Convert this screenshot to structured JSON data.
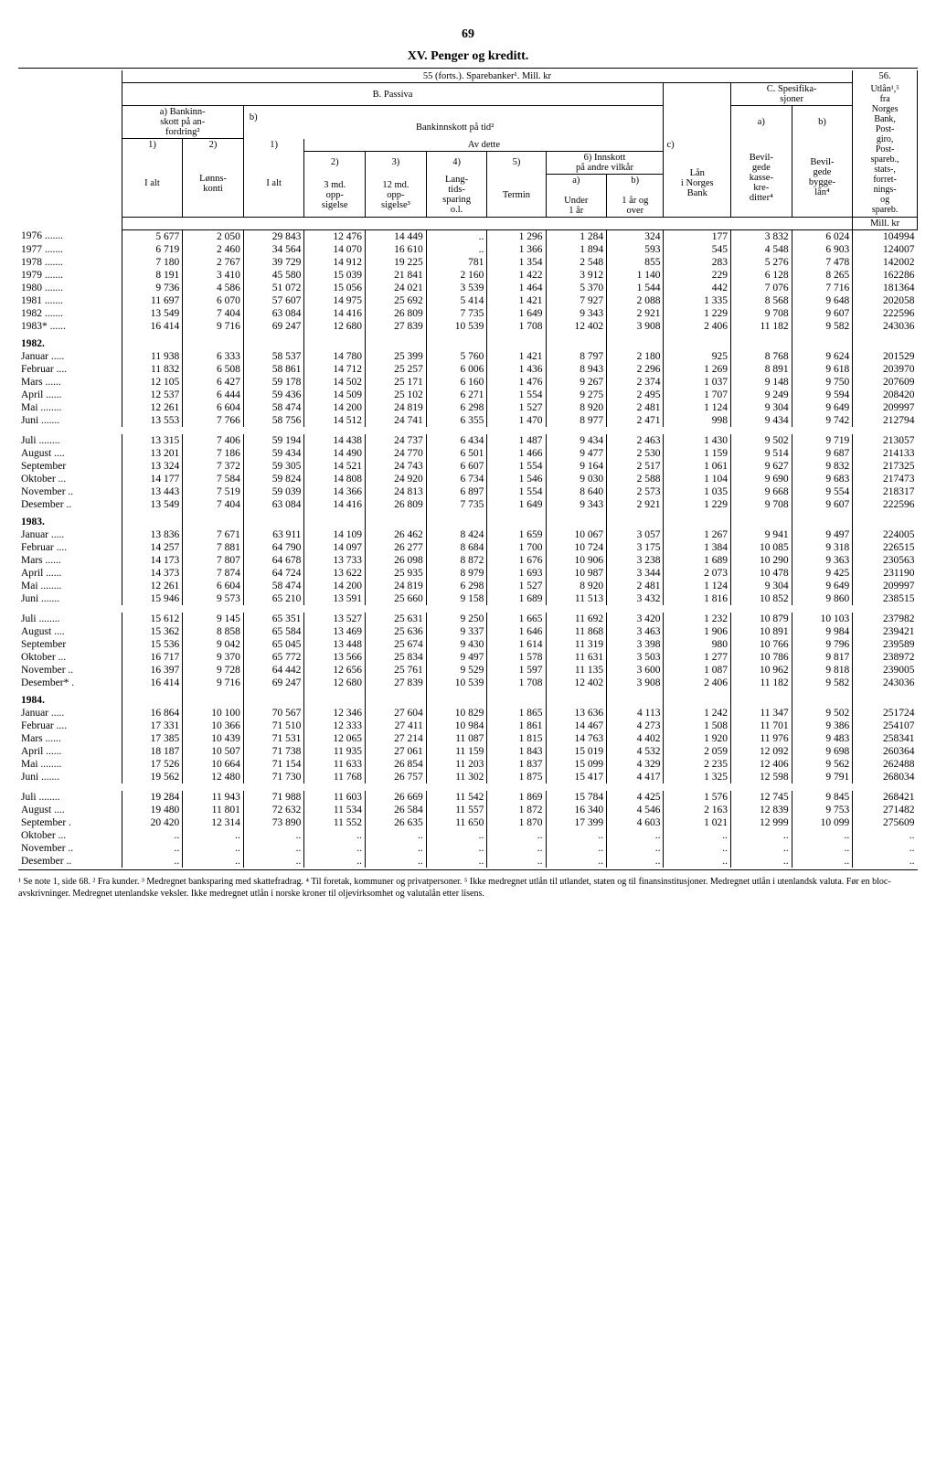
{
  "page_number": "69",
  "chapter_title": "XV. Penger og kreditt.",
  "table_title_left": "55 (forts.). Sparebanker¹. Mill. kr",
  "table_title_right": "56.",
  "header": {
    "b_passiva": "B. Passiva",
    "c_spes": "C. Spesifika-\nsjoner",
    "utlan": "Utlån¹,⁵\nfra\nNorges\nBank,\nPost-\ngiro,\nPost-\nspareb.,\nstats-,\nforret-\nnings-\nog\nspareb.",
    "a_bankinn": "a) Bankinn-\nskott på an-\nfordring²",
    "b_label": "b)",
    "c_label": "c)",
    "a_label_small": "a)",
    "b_label_small": "b)",
    "bankinnskott_tid": "Bankinnskott på tid²",
    "av_dette": "Av dette",
    "innskott_vilkar": "6) Innskott\npå andre vilkår",
    "lan_norges": "Lån\ni Norges\nBank",
    "bevil_kasse": "Bevil-\ngede\nkasse-\nkre-\nditter⁴",
    "bevil_bygge": "Bevil-\ngede\nbygge-\nlån⁴",
    "n1": "1)",
    "n2": "2)",
    "n3": "3)",
    "n4": "4)",
    "n5": "5)",
    "ialt": "I alt",
    "lonns": "Lønns-\nkonti",
    "3md": "3 md.\nopp-\nsigelse",
    "12md": "12 md.\nopp-\nsigelse³",
    "langtids": "Lang-\ntids-\nsparing\no.l.",
    "termin": "Termin",
    "a_small": "a)",
    "b_small": "b)",
    "under1ar": "Under\n1 år",
    "1arog": "1 år og\nover",
    "millkr": "Mill. kr"
  },
  "rows": [
    {
      "label": "1976 .......",
      "v": [
        "5 677",
        "2 050",
        "29 843",
        "12 476",
        "14 449",
        "..",
        "1 296",
        "1 284",
        "324",
        "177",
        "3 832",
        "6 024",
        "104994"
      ]
    },
    {
      "label": "1977 .......",
      "v": [
        "6 719",
        "2 460",
        "34 564",
        "14 070",
        "16 610",
        "..",
        "1 366",
        "1 894",
        "593",
        "545",
        "4 548",
        "6 903",
        "124007"
      ]
    },
    {
      "label": "1978 .......",
      "v": [
        "7 180",
        "2 767",
        "39 729",
        "14 912",
        "19 225",
        "781",
        "1 354",
        "2 548",
        "855",
        "283",
        "5 276",
        "7 478",
        "142002"
      ]
    },
    {
      "label": "1979 .......",
      "v": [
        "8 191",
        "3 410",
        "45 580",
        "15 039",
        "21 841",
        "2 160",
        "1 422",
        "3 912",
        "1 140",
        "229",
        "6 128",
        "8 265",
        "162286"
      ]
    },
    {
      "label": "1980 .......",
      "v": [
        "9 736",
        "4 586",
        "51 072",
        "15 056",
        "24 021",
        "3 539",
        "1 464",
        "5 370",
        "1 544",
        "442",
        "7 076",
        "7 716",
        "181364"
      ]
    },
    {
      "label": "1981 .......",
      "v": [
        "11 697",
        "6 070",
        "57 607",
        "14 975",
        "25 692",
        "5 414",
        "1 421",
        "7 927",
        "2 088",
        "1 335",
        "8 568",
        "9 648",
        "202058"
      ]
    },
    {
      "label": "1982 .......",
      "v": [
        "13 549",
        "7 404",
        "63 084",
        "14 416",
        "26 809",
        "7 735",
        "1 649",
        "9 343",
        "2 921",
        "1 229",
        "9 708",
        "9 607",
        "222596"
      ]
    },
    {
      "label": "1983* ......",
      "v": [
        "16 414",
        "9 716",
        "69 247",
        "12 680",
        "27 839",
        "10 539",
        "1 708",
        "12 402",
        "3 908",
        "2 406",
        "11 182",
        "9 582",
        "243036"
      ]
    }
  ],
  "y1982_label": "1982.",
  "y1982_rows": [
    {
      "label": "Januar .....",
      "v": [
        "11 938",
        "6 333",
        "58 537",
        "14 780",
        "25 399",
        "5 760",
        "1 421",
        "8 797",
        "2 180",
        "925",
        "8 768",
        "9 624",
        "201529"
      ]
    },
    {
      "label": "Februar ....",
      "v": [
        "11 832",
        "6 508",
        "58 861",
        "14 712",
        "25 257",
        "6 006",
        "1 436",
        "8 943",
        "2 296",
        "1 269",
        "8 891",
        "9 618",
        "203970"
      ]
    },
    {
      "label": "Mars ......",
      "v": [
        "12 105",
        "6 427",
        "59 178",
        "14 502",
        "25 171",
        "6 160",
        "1 476",
        "9 267",
        "2 374",
        "1 037",
        "9 148",
        "9 750",
        "207609"
      ]
    },
    {
      "label": "April ......",
      "v": [
        "12 537",
        "6 444",
        "59 436",
        "14 509",
        "25 102",
        "6 271",
        "1 554",
        "9 275",
        "2 495",
        "1 707",
        "9 249",
        "9 594",
        "208420"
      ]
    },
    {
      "label": "Mai ........",
      "v": [
        "12 261",
        "6 604",
        "58 474",
        "14 200",
        "24 819",
        "6 298",
        "1 527",
        "8 920",
        "2 481",
        "1 124",
        "9 304",
        "9 649",
        "209997"
      ]
    },
    {
      "label": "Juni .......",
      "v": [
        "13 553",
        "7 766",
        "58 756",
        "14 512",
        "24 741",
        "6 355",
        "1 470",
        "8 977",
        "2 471",
        "998",
        "9 434",
        "9 742",
        "212794"
      ]
    }
  ],
  "y1982b_rows": [
    {
      "label": "Juli ........",
      "v": [
        "13 315",
        "7 406",
        "59 194",
        "14 438",
        "24 737",
        "6 434",
        "1 487",
        "9 434",
        "2 463",
        "1 430",
        "9 502",
        "9 719",
        "213057"
      ]
    },
    {
      "label": "August ....",
      "v": [
        "13 201",
        "7 186",
        "59 434",
        "14 490",
        "24 770",
        "6 501",
        "1 466",
        "9 477",
        "2 530",
        "1 159",
        "9 514",
        "9 687",
        "214133"
      ]
    },
    {
      "label": "September",
      "v": [
        "13 324",
        "7 372",
        "59 305",
        "14 521",
        "24 743",
        "6 607",
        "1 554",
        "9 164",
        "2 517",
        "1 061",
        "9 627",
        "9 832",
        "217325"
      ]
    },
    {
      "label": "Oktober ...",
      "v": [
        "14 177",
        "7 584",
        "59 824",
        "14 808",
        "24 920",
        "6 734",
        "1 546",
        "9 030",
        "2 588",
        "1 104",
        "9 690",
        "9 683",
        "217473"
      ]
    },
    {
      "label": "November ..",
      "v": [
        "13 443",
        "7 519",
        "59 039",
        "14 366",
        "24 813",
        "6 897",
        "1 554",
        "8 640",
        "2 573",
        "1 035",
        "9 668",
        "9 554",
        "218317"
      ]
    },
    {
      "label": "Desember ..",
      "v": [
        "13 549",
        "7 404",
        "63 084",
        "14 416",
        "26 809",
        "7 735",
        "1 649",
        "9 343",
        "2 921",
        "1 229",
        "9 708",
        "9 607",
        "222596"
      ]
    }
  ],
  "y1983_label": "1983.",
  "y1983_rows": [
    {
      "label": "Januar .....",
      "v": [
        "13 836",
        "7 671",
        "63 911",
        "14 109",
        "26 462",
        "8 424",
        "1 659",
        "10 067",
        "3 057",
        "1 267",
        "9 941",
        "9 497",
        "224005"
      ]
    },
    {
      "label": "Februar ....",
      "v": [
        "14 257",
        "7 881",
        "64 790",
        "14 097",
        "26 277",
        "8 684",
        "1 700",
        "10 724",
        "3 175",
        "1 384",
        "10 085",
        "9 318",
        "226515"
      ]
    },
    {
      "label": "Mars ......",
      "v": [
        "14 173",
        "7 807",
        "64 678",
        "13 733",
        "26 098",
        "8 872",
        "1 676",
        "10 906",
        "3 238",
        "1 689",
        "10 290",
        "9 363",
        "230563"
      ]
    },
    {
      "label": "April ......",
      "v": [
        "14 373",
        "7 874",
        "64 724",
        "13 622",
        "25 935",
        "8 979",
        "1 693",
        "10 987",
        "3 344",
        "2 073",
        "10 478",
        "9 425",
        "231190"
      ]
    },
    {
      "label": "Mai ........",
      "v": [
        "12 261",
        "6 604",
        "58 474",
        "14 200",
        "24 819",
        "6 298",
        "1 527",
        "8 920",
        "2 481",
        "1 124",
        "9 304",
        "9 649",
        "209997"
      ]
    },
    {
      "label": "Juni .......",
      "v": [
        "15 946",
        "9 573",
        "65 210",
        "13 591",
        "25 660",
        "9 158",
        "1 689",
        "11 513",
        "3 432",
        "1 816",
        "10 852",
        "9 860",
        "238515"
      ]
    }
  ],
  "y1983b_rows": [
    {
      "label": "Juli ........",
      "v": [
        "15 612",
        "9 145",
        "65 351",
        "13 527",
        "25 631",
        "9 250",
        "1 665",
        "11 692",
        "3 420",
        "1 232",
        "10 879",
        "10 103",
        "237982"
      ]
    },
    {
      "label": "August ....",
      "v": [
        "15 362",
        "8 858",
        "65 584",
        "13 469",
        "25 636",
        "9 337",
        "1 646",
        "11 868",
        "3 463",
        "1 906",
        "10 891",
        "9 984",
        "239421"
      ]
    },
    {
      "label": "September",
      "v": [
        "15 536",
        "9 042",
        "65 045",
        "13 448",
        "25 674",
        "9 430",
        "1 614",
        "11 319",
        "3 398",
        "980",
        "10 766",
        "9 796",
        "239589"
      ]
    },
    {
      "label": "Oktober ...",
      "v": [
        "16 717",
        "9 370",
        "65 772",
        "13 566",
        "25 834",
        "9 497",
        "1 578",
        "11 631",
        "3 503",
        "1 277",
        "10 786",
        "9 817",
        "238972"
      ]
    },
    {
      "label": "November ..",
      "v": [
        "16 397",
        "9 728",
        "64 442",
        "12 656",
        "25 761",
        "9 529",
        "1 597",
        "11 135",
        "3 600",
        "1 087",
        "10 962",
        "9 818",
        "239005"
      ]
    },
    {
      "label": "Desember* .",
      "v": [
        "16 414",
        "9 716",
        "69 247",
        "12 680",
        "27 839",
        "10 539",
        "1 708",
        "12 402",
        "3 908",
        "2 406",
        "11 182",
        "9 582",
        "243036"
      ]
    }
  ],
  "y1984_label": "1984.",
  "y1984_rows": [
    {
      "label": "Januar .....",
      "v": [
        "16 864",
        "10 100",
        "70 567",
        "12 346",
        "27 604",
        "10 829",
        "1 865",
        "13 636",
        "4 113",
        "1 242",
        "11 347",
        "9 502",
        "251724"
      ]
    },
    {
      "label": "Februar ....",
      "v": [
        "17 331",
        "10 366",
        "71 510",
        "12 333",
        "27 411",
        "10 984",
        "1 861",
        "14 467",
        "4 273",
        "1 508",
        "11 701",
        "9 386",
        "254107"
      ]
    },
    {
      "label": "Mars ......",
      "v": [
        "17 385",
        "10 439",
        "71 531",
        "12 065",
        "27 214",
        "11 087",
        "1 815",
        "14 763",
        "4 402",
        "1 920",
        "11 976",
        "9 483",
        "258341"
      ]
    },
    {
      "label": "April ......",
      "v": [
        "18 187",
        "10 507",
        "71 738",
        "11 935",
        "27 061",
        "11 159",
        "1 843",
        "15 019",
        "4 532",
        "2 059",
        "12 092",
        "9 698",
        "260364"
      ]
    },
    {
      "label": "Mai ........",
      "v": [
        "17 526",
        "10 664",
        "71 154",
        "11 633",
        "26 854",
        "11 203",
        "1 837",
        "15 099",
        "4 329",
        "2 235",
        "12 406",
        "9 562",
        "262488"
      ]
    },
    {
      "label": "Juni .......",
      "v": [
        "19 562",
        "12 480",
        "71 730",
        "11 768",
        "26 757",
        "11 302",
        "1 875",
        "15 417",
        "4 417",
        "1 325",
        "12 598",
        "9 791",
        "268034"
      ]
    }
  ],
  "y1984b_rows": [
    {
      "label": "Juli ........",
      "v": [
        "19 284",
        "11 943",
        "71 988",
        "11 603",
        "26 669",
        "11 542",
        "1 869",
        "15 784",
        "4 425",
        "1 576",
        "12 745",
        "9 845",
        "268421"
      ]
    },
    {
      "label": "August ....",
      "v": [
        "19 480",
        "11 801",
        "72 632",
        "11 534",
        "26 584",
        "11 557",
        "1 872",
        "16 340",
        "4 546",
        "2 163",
        "12 839",
        "9 753",
        "271482"
      ]
    },
    {
      "label": "September .",
      "v": [
        "20 420",
        "12 314",
        "73 890",
        "11 552",
        "26 635",
        "11 650",
        "1 870",
        "17 399",
        "4 603",
        "1 021",
        "12 999",
        "10 099",
        "275609"
      ]
    },
    {
      "label": "Oktober ...",
      "v": [
        "..",
        "..",
        "..",
        "..",
        "..",
        "..",
        "..",
        "..",
        "..",
        "..",
        "..",
        "..",
        ".."
      ]
    },
    {
      "label": "November ..",
      "v": [
        "..",
        "..",
        "..",
        "..",
        "..",
        "..",
        "..",
        "..",
        "..",
        "..",
        "..",
        "..",
        ".."
      ]
    },
    {
      "label": "Desember ..",
      "v": [
        "..",
        "..",
        "..",
        "..",
        "..",
        "..",
        "..",
        "..",
        "..",
        "..",
        "..",
        "..",
        ".."
      ]
    }
  ],
  "footnotes": "¹ Se note 1, side 68.  ² Fra kunder.  ³ Medregnet banksparing med skattefradrag.  ⁴ Til foretak, kommuner og privatpersoner.  ⁵ Ikke medregnet utlån til utlandet, staten og til finansinstitusjoner. Medregnet utlån i utenlandsk valuta. Før en bloc-avskrivninger. Medregnet utenlandske veksler. Ikke medregnet utlån i norske kroner til oljevirksomhet og valutalån etter lisens."
}
